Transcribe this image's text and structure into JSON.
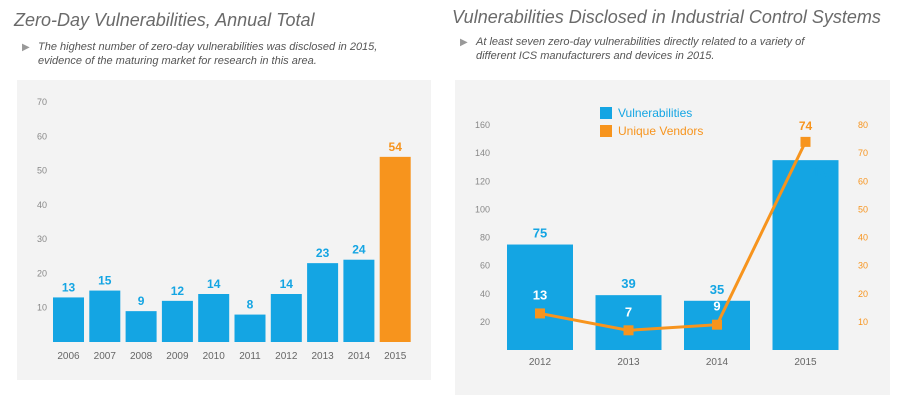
{
  "colors": {
    "blue": "#14a5e3",
    "orange": "#f7941d",
    "panel": "#f3f3f3",
    "tick": "#888888"
  },
  "left": {
    "title": "Zero-Day Vulnerabilities, Annual Total",
    "subtitle_line1": "The highest number of zero-day vulnerabilities was disclosed in 2015,",
    "subtitle_line2": "evidence of the maturing market for research in this area."
  },
  "right": {
    "title": "Vulnerabilities Disclosed in Industrial Control Systems",
    "subtitle_line1": "At least seven zero-day vulnerabilities directly related to a variety of",
    "subtitle_line2": "different ICS manufacturers and devices in 2015."
  },
  "chart_data": [
    {
      "type": "bar",
      "title": "Zero-Day Vulnerabilities, Annual Total",
      "categories": [
        "2006",
        "2007",
        "2008",
        "2009",
        "2010",
        "2011",
        "2012",
        "2013",
        "2014",
        "2015"
      ],
      "values": [
        13,
        15,
        9,
        12,
        14,
        8,
        14,
        23,
        24,
        54
      ],
      "highlight": "2015",
      "ylim": [
        0,
        70
      ],
      "yticks": [
        10,
        20,
        30,
        40,
        50,
        60,
        70
      ],
      "grid": false
    },
    {
      "type": "bar+line",
      "title": "Vulnerabilities Disclosed in Industrial Control Systems",
      "categories": [
        "2012",
        "2013",
        "2014",
        "2015"
      ],
      "series": [
        {
          "name": "Vulnerabilities",
          "type": "bar",
          "axis": "left",
          "values": [
            75,
            39,
            35,
            135
          ]
        },
        {
          "name": "Unique Vendors",
          "type": "line",
          "axis": "right",
          "values": [
            13,
            7,
            9,
            74
          ]
        }
      ],
      "ylim_left": [
        0,
        160
      ],
      "yticks_left": [
        20,
        40,
        60,
        80,
        100,
        120,
        140,
        160
      ],
      "ylim_right": [
        0,
        80
      ],
      "yticks_right": [
        10,
        20,
        30,
        40,
        50,
        60,
        70,
        80
      ],
      "legend": "top-left",
      "grid": false
    }
  ]
}
